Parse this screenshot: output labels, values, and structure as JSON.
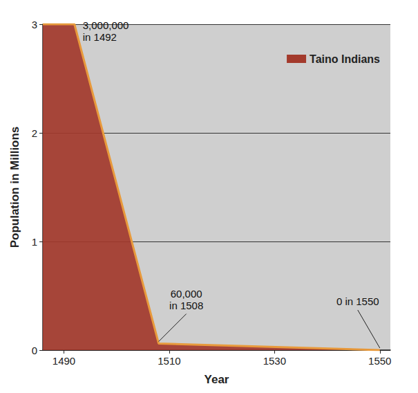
{
  "chart_data": {
    "type": "area",
    "x": [
      1486,
      1492,
      1508,
      1550
    ],
    "series": [
      {
        "name": "Taino Indians",
        "color": "#a33a2c",
        "values": [
          3,
          3,
          0.06,
          0
        ]
      }
    ],
    "xlabel": "Year",
    "ylabel": "Population in Millions",
    "xlim": [
      1486,
      1552
    ],
    "xticks": [
      1490,
      1510,
      1530,
      1550
    ],
    "ylim": [
      0,
      3
    ],
    "yticks": [
      0,
      1,
      2,
      3
    ],
    "grid": true,
    "legend": "upper right",
    "annotations": [
      {
        "text": [
          "3,000,000",
          "in 1492"
        ],
        "x": 1492,
        "y": 3
      },
      {
        "text": [
          "60,000",
          "in 1508"
        ],
        "x": 1508,
        "y": 0.06
      },
      {
        "text": [
          "0 in 1550"
        ],
        "x": 1550,
        "y": 0
      }
    ]
  }
}
